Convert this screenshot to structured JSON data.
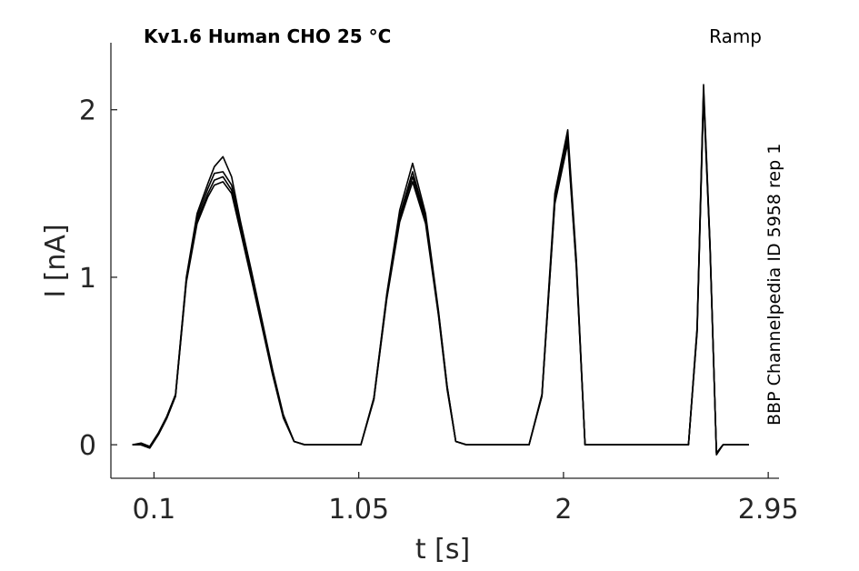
{
  "chart_data": {
    "type": "line",
    "title": "Kv1.6  Human  CHO  25 °C",
    "protocol_label": "Ramp",
    "side_label": "BBP Channelpedia ID 5958 rep 1",
    "xlabel": "t [s]",
    "ylabel": "I [nA]",
    "xlim": [
      -0.1,
      3.0
    ],
    "ylim": [
      -0.2,
      2.4
    ],
    "xticks": [
      0.1,
      1.05,
      2,
      2.95
    ],
    "xtick_labels": [
      "0.1",
      "1.05",
      "2",
      "2.95"
    ],
    "yticks": [
      0,
      1,
      2
    ],
    "ytick_labels": [
      "0",
      "1",
      "2"
    ],
    "grid": false,
    "legend": "none",
    "line_color": "#000000",
    "series": [
      {
        "x": [
          0.0,
          0.04,
          0.08,
          0.12,
          0.16,
          0.2,
          0.25,
          0.3,
          0.35,
          0.38,
          0.42,
          0.46,
          0.5,
          0.55,
          0.6,
          0.65,
          0.7,
          0.75,
          0.8,
          0.85,
          0.9,
          0.95,
          1.0,
          1.06,
          1.12,
          1.18,
          1.24,
          1.3,
          1.36,
          1.42,
          1.46,
          1.5,
          1.55,
          1.6,
          1.65,
          1.7,
          1.75,
          1.8,
          1.84,
          1.9,
          1.96,
          2.02,
          2.06,
          2.1,
          2.13,
          2.16,
          2.19,
          2.22,
          2.28,
          2.36,
          2.44,
          2.52,
          2.58,
          2.62,
          2.65,
          2.68,
          2.71,
          2.74,
          2.8,
          2.86
        ],
        "y": [
          0.0,
          0.0,
          -0.01,
          0.07,
          0.17,
          0.3,
          1.0,
          1.38,
          1.56,
          1.66,
          1.72,
          1.6,
          1.34,
          1.05,
          0.75,
          0.45,
          0.18,
          0.02,
          0.0,
          0.0,
          0.0,
          0.0,
          0.0,
          0.0,
          0.28,
          0.9,
          1.4,
          1.68,
          1.38,
          0.8,
          0.35,
          0.02,
          0.0,
          0.0,
          0.0,
          0.0,
          0.0,
          0.0,
          0.0,
          0.3,
          1.5,
          1.88,
          1.1,
          0.0,
          0.0,
          0.0,
          0.0,
          0.0,
          0.0,
          0.0,
          0.0,
          0.0,
          0.0,
          0.7,
          2.15,
          1.2,
          -0.06,
          0.0,
          0.0,
          0.0
        ]
      },
      {
        "x": [
          0.0,
          0.04,
          0.08,
          0.12,
          0.16,
          0.2,
          0.25,
          0.3,
          0.35,
          0.38,
          0.42,
          0.46,
          0.5,
          0.55,
          0.6,
          0.65,
          0.7,
          0.75,
          0.8,
          0.85,
          0.9,
          0.95,
          1.0,
          1.06,
          1.12,
          1.18,
          1.24,
          1.3,
          1.36,
          1.42,
          1.46,
          1.5,
          1.55,
          1.6,
          1.65,
          1.7,
          1.75,
          1.8,
          1.84,
          1.9,
          1.96,
          2.02,
          2.06,
          2.1,
          2.13,
          2.16,
          2.19,
          2.22,
          2.28,
          2.36,
          2.44,
          2.52,
          2.58,
          2.62,
          2.65,
          2.68,
          2.71,
          2.74,
          2.8,
          2.86
        ],
        "y": [
          0.0,
          0.0,
          -0.02,
          0.06,
          0.16,
          0.29,
          0.98,
          1.34,
          1.5,
          1.58,
          1.6,
          1.52,
          1.3,
          1.02,
          0.72,
          0.43,
          0.17,
          0.02,
          0.0,
          0.0,
          0.0,
          0.0,
          0.0,
          0.0,
          0.27,
          0.88,
          1.35,
          1.6,
          1.34,
          0.78,
          0.34,
          0.02,
          0.0,
          0.0,
          0.0,
          0.0,
          0.0,
          0.0,
          0.0,
          0.29,
          1.45,
          1.82,
          1.06,
          0.0,
          0.0,
          0.0,
          0.0,
          0.0,
          0.0,
          0.0,
          0.0,
          0.0,
          0.0,
          0.68,
          2.1,
          1.18,
          -0.05,
          0.0,
          0.0,
          0.0
        ]
      },
      {
        "x": [
          0.0,
          0.04,
          0.08,
          0.12,
          0.16,
          0.2,
          0.25,
          0.3,
          0.35,
          0.38,
          0.42,
          0.46,
          0.5,
          0.55,
          0.6,
          0.65,
          0.7,
          0.75,
          0.8,
          0.85,
          0.9,
          0.95,
          1.0,
          1.06,
          1.12,
          1.18,
          1.24,
          1.3,
          1.36,
          1.42,
          1.46,
          1.5,
          1.55,
          1.6,
          1.65,
          1.7,
          1.75,
          1.8,
          1.84,
          1.9,
          1.96,
          2.02,
          2.06,
          2.1,
          2.13,
          2.16,
          2.19,
          2.22,
          2.28,
          2.36,
          2.44,
          2.52,
          2.58,
          2.62,
          2.65,
          2.68,
          2.71,
          2.74,
          2.8,
          2.86
        ],
        "y": [
          0.0,
          0.01,
          -0.01,
          0.07,
          0.17,
          0.3,
          0.99,
          1.36,
          1.53,
          1.62,
          1.63,
          1.55,
          1.32,
          1.03,
          0.73,
          0.44,
          0.17,
          0.02,
          0.0,
          0.0,
          0.0,
          0.0,
          0.0,
          0.0,
          0.28,
          0.89,
          1.37,
          1.63,
          1.36,
          0.79,
          0.35,
          0.02,
          0.0,
          0.0,
          0.0,
          0.0,
          0.0,
          0.0,
          0.0,
          0.3,
          1.47,
          1.85,
          1.08,
          0.0,
          0.0,
          0.0,
          0.0,
          0.0,
          0.0,
          0.0,
          0.0,
          0.0,
          0.0,
          0.69,
          2.12,
          1.19,
          -0.05,
          0.0,
          0.0,
          0.0
        ]
      },
      {
        "x": [
          0.0,
          0.04,
          0.08,
          0.12,
          0.16,
          0.2,
          0.25,
          0.3,
          0.35,
          0.38,
          0.42,
          0.46,
          0.5,
          0.55,
          0.6,
          0.65,
          0.7,
          0.75,
          0.8,
          0.85,
          0.9,
          0.95,
          1.0,
          1.06,
          1.12,
          1.18,
          1.24,
          1.3,
          1.36,
          1.42,
          1.46,
          1.5,
          1.55,
          1.6,
          1.65,
          1.7,
          1.75,
          1.8,
          1.84,
          1.9,
          1.96,
          2.02,
          2.06,
          2.1,
          2.13,
          2.16,
          2.19,
          2.22,
          2.28,
          2.36,
          2.44,
          2.52,
          2.58,
          2.62,
          2.65,
          2.68,
          2.71,
          2.74,
          2.8,
          2.86
        ],
        "y": [
          0.0,
          0.0,
          -0.02,
          0.06,
          0.16,
          0.29,
          0.97,
          1.32,
          1.48,
          1.55,
          1.57,
          1.5,
          1.28,
          1.0,
          0.71,
          0.42,
          0.16,
          0.02,
          0.0,
          0.0,
          0.0,
          0.0,
          0.0,
          0.0,
          0.27,
          0.87,
          1.33,
          1.57,
          1.32,
          0.77,
          0.33,
          0.02,
          0.0,
          0.0,
          0.0,
          0.0,
          0.0,
          0.0,
          0.0,
          0.29,
          1.44,
          1.8,
          1.05,
          0.0,
          0.0,
          0.0,
          0.0,
          0.0,
          0.0,
          0.0,
          0.0,
          0.0,
          0.0,
          0.67,
          2.08,
          1.17,
          -0.05,
          0.0,
          0.0,
          0.0
        ]
      }
    ]
  }
}
